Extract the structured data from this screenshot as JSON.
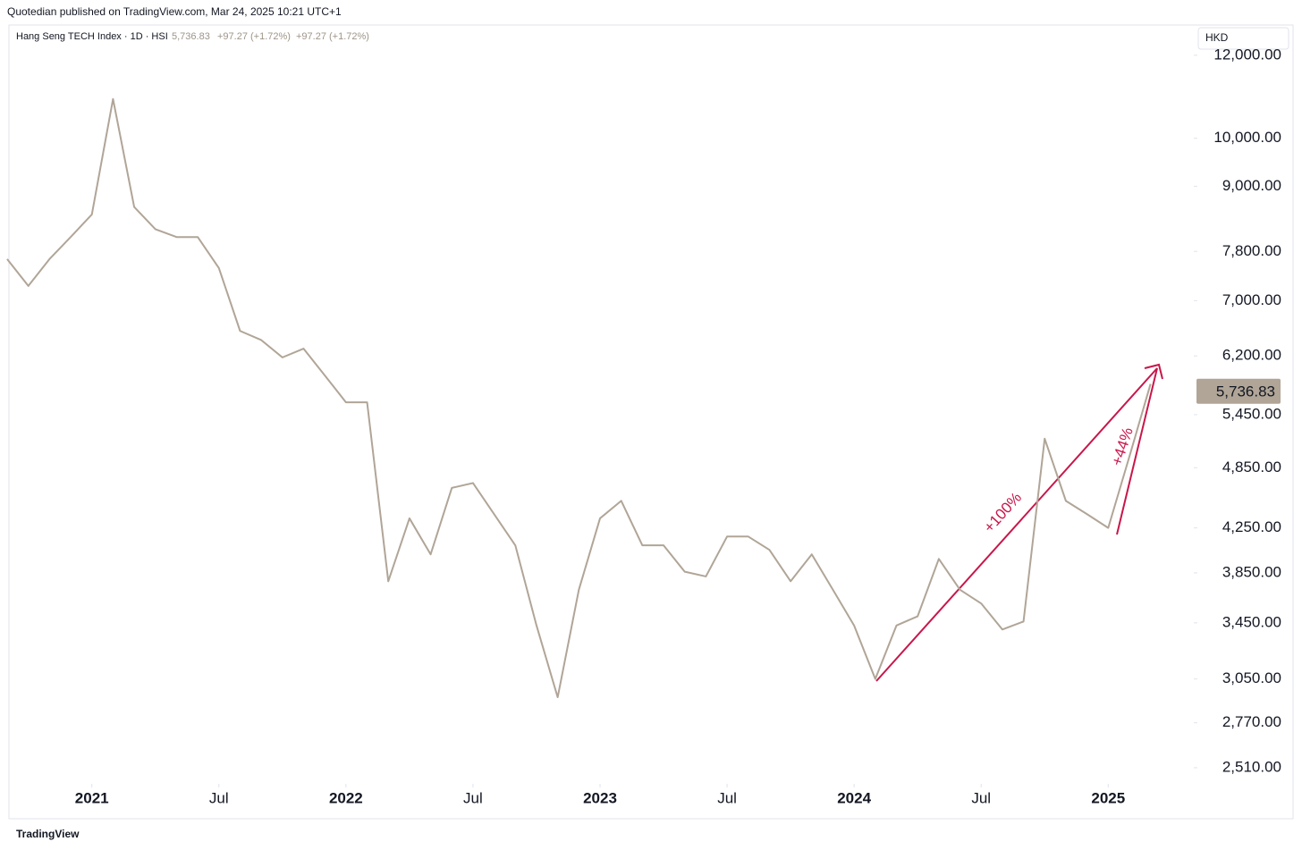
{
  "header": {
    "published": "Quotedian published on TradingView.com, Mar 24, 2025 10:21 UTC+1",
    "footer": "TradingView"
  },
  "chart_data": {
    "type": "line",
    "log_scale": true,
    "grid": false,
    "currency": "HKD",
    "title": "Hang Seng TECH Index · 1D · HSI",
    "last_price": {
      "value": 5736.83,
      "label": "5,736.83"
    },
    "change": "+97.27 (+1.72%)",
    "annotations": [
      "+100%",
      "+44%"
    ],
    "x": [
      "2020-09",
      "2020-10",
      "2020-11",
      "2020-12",
      "2021-01",
      "2021-02",
      "2021-03",
      "2021-04",
      "2021-05",
      "2021-06",
      "2021-07",
      "2021-08",
      "2021-09",
      "2021-10",
      "2021-11",
      "2021-12",
      "2022-01",
      "2022-02",
      "2022-03",
      "2022-04",
      "2022-05",
      "2022-06",
      "2022-07",
      "2022-08",
      "2022-09",
      "2022-10",
      "2022-11",
      "2022-12",
      "2023-01",
      "2023-02",
      "2023-03",
      "2023-04",
      "2023-05",
      "2023-06",
      "2023-07",
      "2023-08",
      "2023-09",
      "2023-10",
      "2023-11",
      "2023-12",
      "2024-01",
      "2024-02",
      "2024-03",
      "2024-04",
      "2024-05",
      "2024-06",
      "2024-07",
      "2024-08",
      "2024-09",
      "2024-10",
      "2024-11",
      "2024-12",
      "2025-01",
      "2025-02",
      "2025-03"
    ],
    "series": [
      {
        "name": "Hang Seng TECH Index",
        "color": "#b0a597",
        "values": [
          7670,
          7230,
          7670,
          8050,
          8460,
          10900,
          8600,
          8190,
          8050,
          8050,
          7520,
          6550,
          6420,
          6180,
          6300,
          5940,
          5600,
          5600,
          3780,
          4340,
          4010,
          4640,
          4690,
          4380,
          4090,
          3430,
          2930,
          3710,
          4340,
          4510,
          4090,
          4090,
          3860,
          3820,
          4170,
          4170,
          4050,
          3780,
          4010,
          3710,
          3430,
          3050,
          3430,
          3500,
          3970,
          3710,
          3600,
          3400,
          3460,
          5170,
          4510,
          4380,
          4250,
          4970,
          5830
        ]
      }
    ],
    "xlim": [
      "2020-09",
      "2025-05"
    ],
    "xticks": [
      {
        "value": "2021-01",
        "label": "2021"
      },
      {
        "value": "2021-07",
        "label": "Jul"
      },
      {
        "value": "2022-01",
        "label": "2022"
      },
      {
        "value": "2022-07",
        "label": "Jul"
      },
      {
        "value": "2023-01",
        "label": "2023"
      },
      {
        "value": "2023-07",
        "label": "Jul"
      },
      {
        "value": "2024-01",
        "label": "2024"
      },
      {
        "value": "2024-07",
        "label": "Jul"
      },
      {
        "value": "2025-01",
        "label": "2025"
      }
    ],
    "ylim": [
      2432,
      12773
    ],
    "yticks": [
      {
        "value": 2510,
        "label": "2,510.00"
      },
      {
        "value": 2770,
        "label": "2,770.00"
      },
      {
        "value": 3050,
        "label": "3,050.00"
      },
      {
        "value": 3450,
        "label": "3,450.00"
      },
      {
        "value": 3850,
        "label": "3,850.00"
      },
      {
        "value": 4250,
        "label": "4,250.00"
      },
      {
        "value": 4850,
        "label": "4,850.00"
      },
      {
        "value": 5450,
        "label": "5,450.00"
      },
      {
        "value": 6200,
        "label": "6,200.00"
      },
      {
        "value": 7000,
        "label": "7,000.00"
      },
      {
        "value": 7800,
        "label": "7,800.00"
      },
      {
        "value": 9000,
        "label": "9,000.00"
      },
      {
        "value": 10000,
        "label": "10,000.00"
      },
      {
        "value": 12000,
        "label": "12,000.00"
      }
    ]
  }
}
